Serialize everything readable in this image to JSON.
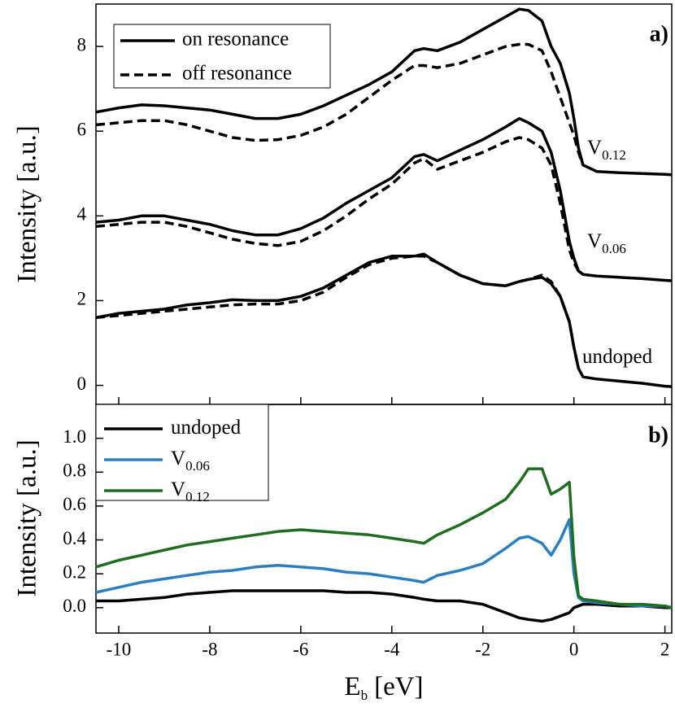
{
  "chart_data": [
    {
      "type": "line",
      "panel_label": "a)",
      "ylabel": "Intensity [a.u.]",
      "xlim": [
        -10.5,
        2.15
      ],
      "ylim": [
        -0.45,
        9
      ],
      "yticks": [
        0,
        2,
        4,
        6,
        8
      ],
      "x": [
        -10.5,
        -10,
        -9.5,
        -9,
        -8.5,
        -8,
        -7.5,
        -7,
        -6.5,
        -6,
        -5.5,
        -5,
        -4.5,
        -4,
        -3.5,
        -3.3,
        -3,
        -2.5,
        -2,
        -1.5,
        -1.2,
        -1,
        -0.7,
        -0.5,
        -0.3,
        -0.1,
        0,
        0.1,
        0.2,
        0.5,
        1,
        1.5,
        2,
        2.15
      ],
      "legend": [
        {
          "name": "on resonance",
          "dash": "solid"
        },
        {
          "name": "off resonance",
          "dash": "dashed"
        }
      ],
      "series": [
        {
          "label": "V",
          "label_sub": "0.12",
          "dash": "solid",
          "color": "#000000",
          "values": [
            6.45,
            6.55,
            6.62,
            6.6,
            6.55,
            6.5,
            6.4,
            6.3,
            6.3,
            6.4,
            6.6,
            6.85,
            7.1,
            7.4,
            7.9,
            7.95,
            7.9,
            8.1,
            8.4,
            8.7,
            8.88,
            8.85,
            8.6,
            8.0,
            7.6,
            6.9,
            6.3,
            5.6,
            5.2,
            5.05,
            5.02,
            5.0,
            4.98,
            4.97
          ]
        },
        {
          "dash": "dashed",
          "color": "#000000",
          "values": [
            6.15,
            6.2,
            6.25,
            6.25,
            6.15,
            6.0,
            5.85,
            5.78,
            5.8,
            5.9,
            6.1,
            6.4,
            6.8,
            7.2,
            7.55,
            7.55,
            7.5,
            7.6,
            7.8,
            8.0,
            8.05,
            8.05,
            7.9,
            7.4,
            6.8,
            6.2,
            5.9,
            5.5,
            5.2,
            null,
            null,
            null,
            null,
            null
          ]
        },
        {
          "label": "V",
          "label_sub": "0.06",
          "dash": "solid",
          "color": "#000000",
          "values": [
            3.85,
            3.9,
            4.0,
            4.0,
            3.9,
            3.8,
            3.65,
            3.55,
            3.55,
            3.7,
            3.95,
            4.3,
            4.6,
            4.9,
            5.4,
            5.45,
            5.3,
            5.55,
            5.8,
            6.1,
            6.3,
            6.2,
            6.0,
            5.5,
            4.6,
            3.4,
            3.0,
            2.7,
            2.62,
            2.58,
            2.55,
            2.52,
            2.48,
            2.47
          ]
        },
        {
          "dash": "dashed",
          "color": "#000000",
          "values": [
            3.75,
            3.8,
            3.85,
            3.85,
            3.75,
            3.6,
            3.45,
            3.35,
            3.3,
            3.4,
            3.65,
            4.0,
            4.4,
            4.75,
            5.25,
            5.35,
            5.1,
            5.3,
            5.5,
            5.75,
            5.85,
            5.8,
            5.6,
            5.2,
            4.3,
            3.2,
            2.9,
            2.7,
            2.62,
            null,
            null,
            null,
            null,
            null
          ]
        },
        {
          "label": "undoped",
          "dash": "solid",
          "color": "#000000",
          "values": [
            1.6,
            1.7,
            1.75,
            1.8,
            1.9,
            1.95,
            2.02,
            2.0,
            2.0,
            2.1,
            2.3,
            2.6,
            2.9,
            3.05,
            3.05,
            3.1,
            2.9,
            2.6,
            2.4,
            2.35,
            2.45,
            2.5,
            2.55,
            2.4,
            2.1,
            1.5,
            0.9,
            0.4,
            0.2,
            0.15,
            0.1,
            0.05,
            -0.02,
            -0.03
          ]
        },
        {
          "dash": "dashed",
          "color": "#000000",
          "values": [
            1.6,
            1.65,
            1.7,
            1.75,
            1.8,
            1.85,
            1.9,
            1.92,
            1.92,
            2.0,
            2.2,
            2.55,
            2.85,
            3.0,
            3.05,
            3.05,
            2.9,
            2.6,
            2.4,
            2.35,
            2.45,
            2.5,
            2.6,
            2.45,
            2.1,
            1.5,
            0.9,
            0.4,
            null,
            null,
            null,
            null,
            null,
            null
          ]
        }
      ]
    },
    {
      "type": "line",
      "panel_label": "b)",
      "ylabel": "Intensity [a.u.]",
      "xlabel": {
        "main": "E",
        "sub": "b",
        "unit": "[eV]"
      },
      "xlim": [
        -10.5,
        2.15
      ],
      "ylim": [
        -0.15,
        1.2
      ],
      "xticks": [
        -10,
        -8,
        -6,
        -4,
        -2,
        0,
        2
      ],
      "yticks": [
        {
          "value": 0,
          "label": "0.0"
        },
        0.2,
        0.4,
        0.6,
        0.8,
        {
          "value": 1,
          "label": "1.0"
        }
      ],
      "x": [
        -10.5,
        -10,
        -9.5,
        -9,
        -8.5,
        -8,
        -7.5,
        -7,
        -6.5,
        -6,
        -5.5,
        -5,
        -4.5,
        -4,
        -3.5,
        -3.3,
        -3,
        -2.5,
        -2,
        -1.5,
        -1.2,
        -1,
        -0.7,
        -0.5,
        -0.3,
        -0.1,
        0,
        0.1,
        0.2,
        0.5,
        1,
        1.5,
        2,
        2.15
      ],
      "series": [
        {
          "name": "undoped",
          "color": "#000000",
          "values": [
            0.04,
            0.04,
            0.05,
            0.06,
            0.08,
            0.09,
            0.1,
            0.1,
            0.1,
            0.1,
            0.1,
            0.09,
            0.09,
            0.08,
            0.06,
            0.05,
            0.04,
            0.04,
            0.02,
            -0.03,
            -0.06,
            -0.07,
            -0.08,
            -0.07,
            -0.05,
            -0.03,
            0.0,
            0.01,
            0.02,
            0.02,
            0.01,
            0.01,
            0.0,
            0.0
          ]
        },
        {
          "name": "V",
          "name_sub": "0.06",
          "color": "#2b7fc1",
          "values": [
            0.09,
            0.12,
            0.15,
            0.17,
            0.19,
            0.21,
            0.22,
            0.24,
            0.25,
            0.24,
            0.23,
            0.21,
            0.2,
            0.18,
            0.16,
            0.15,
            0.19,
            0.22,
            0.26,
            0.35,
            0.41,
            0.42,
            0.38,
            0.31,
            0.4,
            0.52,
            0.2,
            0.06,
            0.04,
            0.03,
            0.02,
            0.01,
            0.01,
            0.0
          ]
        },
        {
          "name": "V",
          "name_sub": "0.12",
          "color": "#1f6e1f",
          "values": [
            0.24,
            0.28,
            0.31,
            0.34,
            0.37,
            0.39,
            0.41,
            0.43,
            0.45,
            0.46,
            0.45,
            0.44,
            0.43,
            0.41,
            0.39,
            0.38,
            0.43,
            0.49,
            0.56,
            0.64,
            0.74,
            0.82,
            0.82,
            0.67,
            0.7,
            0.74,
            0.3,
            0.07,
            0.05,
            0.04,
            0.02,
            0.02,
            0.01,
            0.0
          ]
        }
      ]
    }
  ]
}
